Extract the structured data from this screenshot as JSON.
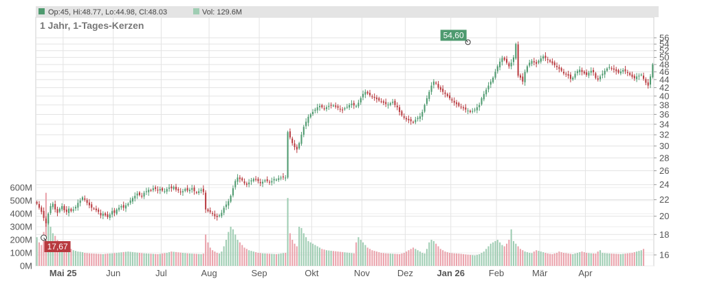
{
  "legend": {
    "ohlc_text": "Op:45, Hi:48.77, Lo:44.98, Cl:48.03",
    "vol_text": "Vol: 129.6M",
    "ohlc_color": "#4e9a6f",
    "vol_color": "#9fcdb3"
  },
  "chart_data": {
    "type": "candlestick",
    "subtitle": "1 Jahr, 1-Tages-Kerzen",
    "colors": {
      "up": "#4e9a6f",
      "down": "#b83a3f",
      "vol_up": "#9fcdb3",
      "vol_down": "#eaa2ab"
    },
    "price_axis": {
      "scale": "log",
      "range": [
        15,
        58
      ],
      "ticks": [
        16,
        18,
        20,
        22,
        24,
        26,
        28,
        30,
        32,
        34,
        36,
        38,
        40,
        42,
        44,
        46,
        48,
        50,
        52,
        54,
        56
      ]
    },
    "volume_axis": {
      "range": [
        0,
        640
      ],
      "unit": "M",
      "ticks": [
        0,
        100,
        200,
        300,
        400,
        500,
        600
      ],
      "tick_labels": [
        "0M",
        "100M",
        "200M",
        "300M",
        "400M",
        "500M",
        "600M"
      ]
    },
    "x_ticks": [
      "Mai 25",
      "Jun",
      "Jul",
      "Aug",
      "Sep",
      "Okt",
      "Nov",
      "Dez",
      "Jan 26",
      "Feb",
      "Mär",
      "Apr"
    ],
    "x_tick_index": [
      12,
      34,
      55,
      76,
      98,
      121,
      143,
      162,
      182,
      202,
      221,
      241
    ],
    "bold_x_ticks": [
      "Mai 25",
      "Jan 26"
    ],
    "annotations": {
      "high": {
        "label": "54,60",
        "value": 54.6,
        "index": 189
      },
      "low": {
        "label": "17,67",
        "value": 17.67,
        "index": 3
      }
    },
    "closes": [
      21.5,
      21.0,
      20.5,
      19.8,
      19.2,
      20.3,
      21.2,
      21.5,
      20.8,
      20.4,
      20.9,
      21.2,
      20.7,
      20.5,
      20.9,
      20.6,
      20.8,
      21.1,
      21.6,
      21.9,
      22.3,
      22.0,
      21.6,
      21.3,
      21.0,
      20.9,
      20.7,
      20.5,
      20.1,
      20.3,
      20.1,
      19.9,
      20.2,
      20.6,
      20.4,
      20.8,
      21.0,
      21.2,
      21.0,
      21.3,
      21.5,
      21.9,
      22.2,
      22.5,
      22.8,
      22.6,
      22.4,
      22.9,
      23.1,
      23.3,
      23.2,
      23.5,
      23.4,
      23.2,
      23.4,
      23.2,
      23.1,
      23.4,
      23.6,
      23.5,
      23.7,
      23.3,
      23.2,
      23.0,
      23.1,
      23.4,
      23.2,
      23.3,
      23.5,
      23.1,
      22.9,
      23.1,
      23.3,
      23.0,
      20.8,
      20.6,
      20.5,
      20.3,
      20.0,
      19.9,
      20.1,
      20.4,
      21.0,
      21.4,
      21.8,
      22.5,
      23.5,
      24.5,
      25.0,
      24.8,
      24.6,
      24.2,
      24.0,
      24.3,
      24.6,
      24.8,
      24.7,
      24.5,
      24.2,
      24.4,
      24.6,
      24.5,
      24.3,
      24.5,
      24.8,
      24.7,
      24.9,
      25.0,
      25.1,
      25.0,
      32.5,
      31.5,
      30.5,
      29.8,
      29.4,
      30.5,
      32.0,
      33.5,
      34.5,
      35.5,
      36.0,
      36.5,
      37.0,
      37.5,
      37.8,
      37.5,
      37.2,
      37.5,
      37.8,
      38.0,
      37.9,
      37.6,
      37.4,
      37.1,
      37.0,
      37.3,
      37.6,
      38.0,
      38.3,
      37.9,
      37.8,
      38.5,
      39.5,
      40.5,
      41.0,
      40.6,
      40.2,
      39.9,
      39.6,
      39.3,
      39.0,
      38.8,
      38.5,
      38.2,
      38.1,
      38.4,
      38.7,
      38.0,
      37.5,
      36.5,
      35.8,
      35.3,
      35.0,
      34.8,
      34.6,
      34.4,
      34.9,
      35.3,
      35.6,
      36.5,
      38.0,
      39.5,
      41.0,
      42.5,
      43.5,
      43.0,
      42.0,
      41.5,
      41.0,
      40.5,
      40.0,
      39.5,
      39.0,
      38.5,
      38.2,
      37.8,
      37.5,
      37.3,
      37.0,
      36.8,
      36.5,
      36.7,
      37.0,
      37.5,
      38.0,
      39.5,
      40.5,
      41.5,
      42.5,
      43.5,
      44.5,
      46.0,
      47.5,
      48.8,
      49.8,
      49.3,
      48.5,
      47.5,
      48.5,
      50.0,
      54.0,
      45.0,
      44.5,
      43.5,
      46.0,
      47.5,
      48.5,
      49.0,
      48.6,
      48.2,
      49.0,
      49.7,
      50.3,
      49.8,
      49.3,
      48.8,
      48.3,
      47.8,
      47.3,
      46.8,
      46.3,
      45.6,
      45.3,
      45.0,
      44.2,
      44.5,
      45.5,
      46.2,
      46.6,
      46.0,
      45.6,
      45.2,
      45.8,
      46.3,
      45.9,
      44.4,
      44.0,
      44.8,
      45.5,
      46.3,
      46.9,
      47.3,
      47.0,
      46.6,
      46.2,
      45.8,
      46.1,
      46.5,
      46.2,
      45.8,
      45.2,
      44.7,
      44.3,
      44.8,
      45.0,
      45.3,
      44.2,
      43.2,
      42.5,
      44.8,
      48.03
    ],
    "volumes": [
      220,
      180,
      160,
      260,
      560,
      350,
      300,
      250,
      230,
      200,
      180,
      170,
      160,
      150,
      140,
      130,
      120,
      115,
      110,
      108,
      105,
      100,
      98,
      96,
      95,
      94,
      93,
      92,
      91,
      90,
      92,
      94,
      95,
      96,
      98,
      100,
      102,
      104,
      106,
      108,
      110,
      108,
      106,
      104,
      102,
      100,
      98,
      96,
      95,
      94,
      93,
      92,
      91,
      90,
      92,
      95,
      98,
      100,
      105,
      110,
      108,
      106,
      104,
      102,
      100,
      98,
      96,
      95,
      94,
      93,
      92,
      91,
      90,
      94,
      240,
      180,
      140,
      120,
      110,
      100,
      95,
      110,
      150,
      200,
      260,
      300,
      280,
      240,
      200,
      180,
      160,
      140,
      130,
      120,
      115,
      110,
      105,
      100,
      98,
      96,
      95,
      94,
      93,
      92,
      91,
      90,
      92,
      95,
      98,
      100,
      520,
      250,
      200,
      170,
      150,
      300,
      290,
      250,
      220,
      190,
      180,
      170,
      160,
      150,
      140,
      130,
      125,
      120,
      118,
      116,
      114,
      112,
      110,
      108,
      106,
      104,
      102,
      100,
      98,
      96,
      180,
      220,
      200,
      180,
      160,
      140,
      130,
      120,
      115,
      110,
      105,
      100,
      98,
      96,
      95,
      94,
      93,
      92,
      91,
      90,
      95,
      100,
      110,
      120,
      130,
      140,
      130,
      120,
      110,
      100,
      95,
      130,
      180,
      200,
      190,
      170,
      150,
      130,
      120,
      110,
      105,
      100,
      98,
      96,
      95,
      94,
      92,
      90,
      88,
      86,
      84,
      82,
      80,
      85,
      90,
      100,
      110,
      130,
      150,
      170,
      180,
      190,
      200,
      180,
      160,
      150,
      170,
      200,
      280,
      190,
      170,
      150,
      130,
      120,
      110,
      105,
      100,
      98,
      110,
      120,
      115,
      110,
      105,
      100,
      95,
      92,
      90,
      95,
      100,
      110,
      105,
      100,
      98,
      95,
      92,
      90,
      95,
      100,
      105,
      110,
      105,
      100,
      98,
      96,
      95,
      94,
      110,
      120,
      100,
      98,
      96,
      95,
      94,
      93,
      92,
      91,
      90,
      92,
      94,
      96,
      98,
      100,
      105,
      110,
      115,
      120,
      130
    ]
  }
}
